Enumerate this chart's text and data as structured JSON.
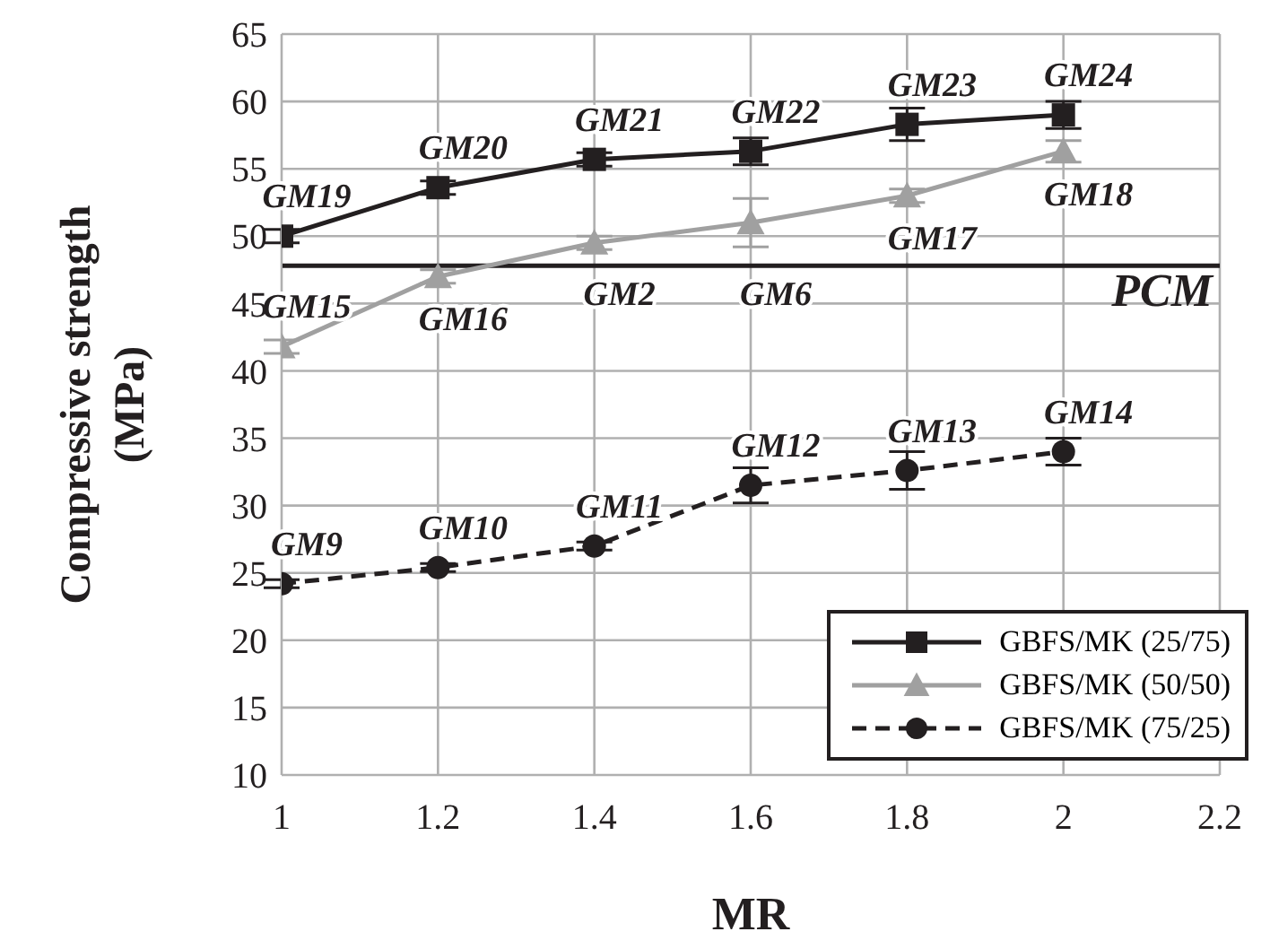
{
  "chart_data": {
    "type": "line",
    "xlabel": "MR",
    "ylabel": "Compressive strength (MPa)",
    "x": [
      1,
      1.2,
      1.4,
      1.6,
      1.8,
      2
    ],
    "xlim": [
      1,
      2.2
    ],
    "xticks": [
      1,
      1.2,
      1.4,
      1.6,
      1.8,
      2,
      2.2
    ],
    "ylim": [
      10,
      65
    ],
    "yticks": [
      10,
      15,
      20,
      25,
      30,
      35,
      40,
      45,
      50,
      55,
      60,
      65
    ],
    "grid": true,
    "legend": "bottom right",
    "series": [
      {
        "name": "GBFS/MK (25/75)",
        "color": "#231f20",
        "marker": "square",
        "line_style": "solid",
        "values": [
          50,
          53.6,
          55.7,
          56.3,
          58.3,
          59
        ],
        "errors": [
          0.5,
          0.5,
          0.5,
          1,
          1.2,
          1
        ]
      },
      {
        "name": "GBFS/MK (50/50)",
        "color": "#a0a0a0",
        "marker": "triangle",
        "line_style": "solid",
        "values": [
          41.8,
          47,
          49.5,
          51,
          53,
          56.3
        ],
        "errors": [
          0.5,
          0.5,
          0.5,
          1.8,
          0.5,
          0.8
        ]
      },
      {
        "name": "GBFS/MK (75/25)",
        "color": "#231f20",
        "marker": "circle",
        "line_style": "dashed",
        "values": [
          24.2,
          25.4,
          27,
          31.5,
          32.6,
          34
        ],
        "errors": [
          0.3,
          0.3,
          0.3,
          1.3,
          1.4,
          1
        ]
      }
    ],
    "ref_lines": [
      {
        "axis": "y",
        "value": 47.8,
        "label": "PCM",
        "color": "#231f20"
      }
    ],
    "annotations": [
      {
        "text": "GM19",
        "x": 1,
        "y": 50
      },
      {
        "text": "GM20",
        "x": 1.2,
        "y": 53.6
      },
      {
        "text": "GM21",
        "x": 1.4,
        "y": 55.7
      },
      {
        "text": "GM22",
        "x": 1.6,
        "y": 56.3
      },
      {
        "text": "GM23",
        "x": 1.8,
        "y": 58.3
      },
      {
        "text": "GM24",
        "x": 2,
        "y": 59
      },
      {
        "text": "GM15",
        "x": 1,
        "y": 41.8
      },
      {
        "text": "GM16",
        "x": 1.2,
        "y": 47
      },
      {
        "text": "GM2",
        "x": 1.4,
        "y": 49.5
      },
      {
        "text": "GM6",
        "x": 1.6,
        "y": 51
      },
      {
        "text": "GM17",
        "x": 1.8,
        "y": 53
      },
      {
        "text": "GM18",
        "x": 2,
        "y": 56.3
      },
      {
        "text": "GM9",
        "x": 1,
        "y": 24.2
      },
      {
        "text": "GM10",
        "x": 1.2,
        "y": 25.4
      },
      {
        "text": "GM11",
        "x": 1.4,
        "y": 27
      },
      {
        "text": "GM12",
        "x": 1.6,
        "y": 31.5
      },
      {
        "text": "GM13",
        "x": 1.8,
        "y": 32.6
      },
      {
        "text": "GM14",
        "x": 2,
        "y": 34
      }
    ]
  }
}
